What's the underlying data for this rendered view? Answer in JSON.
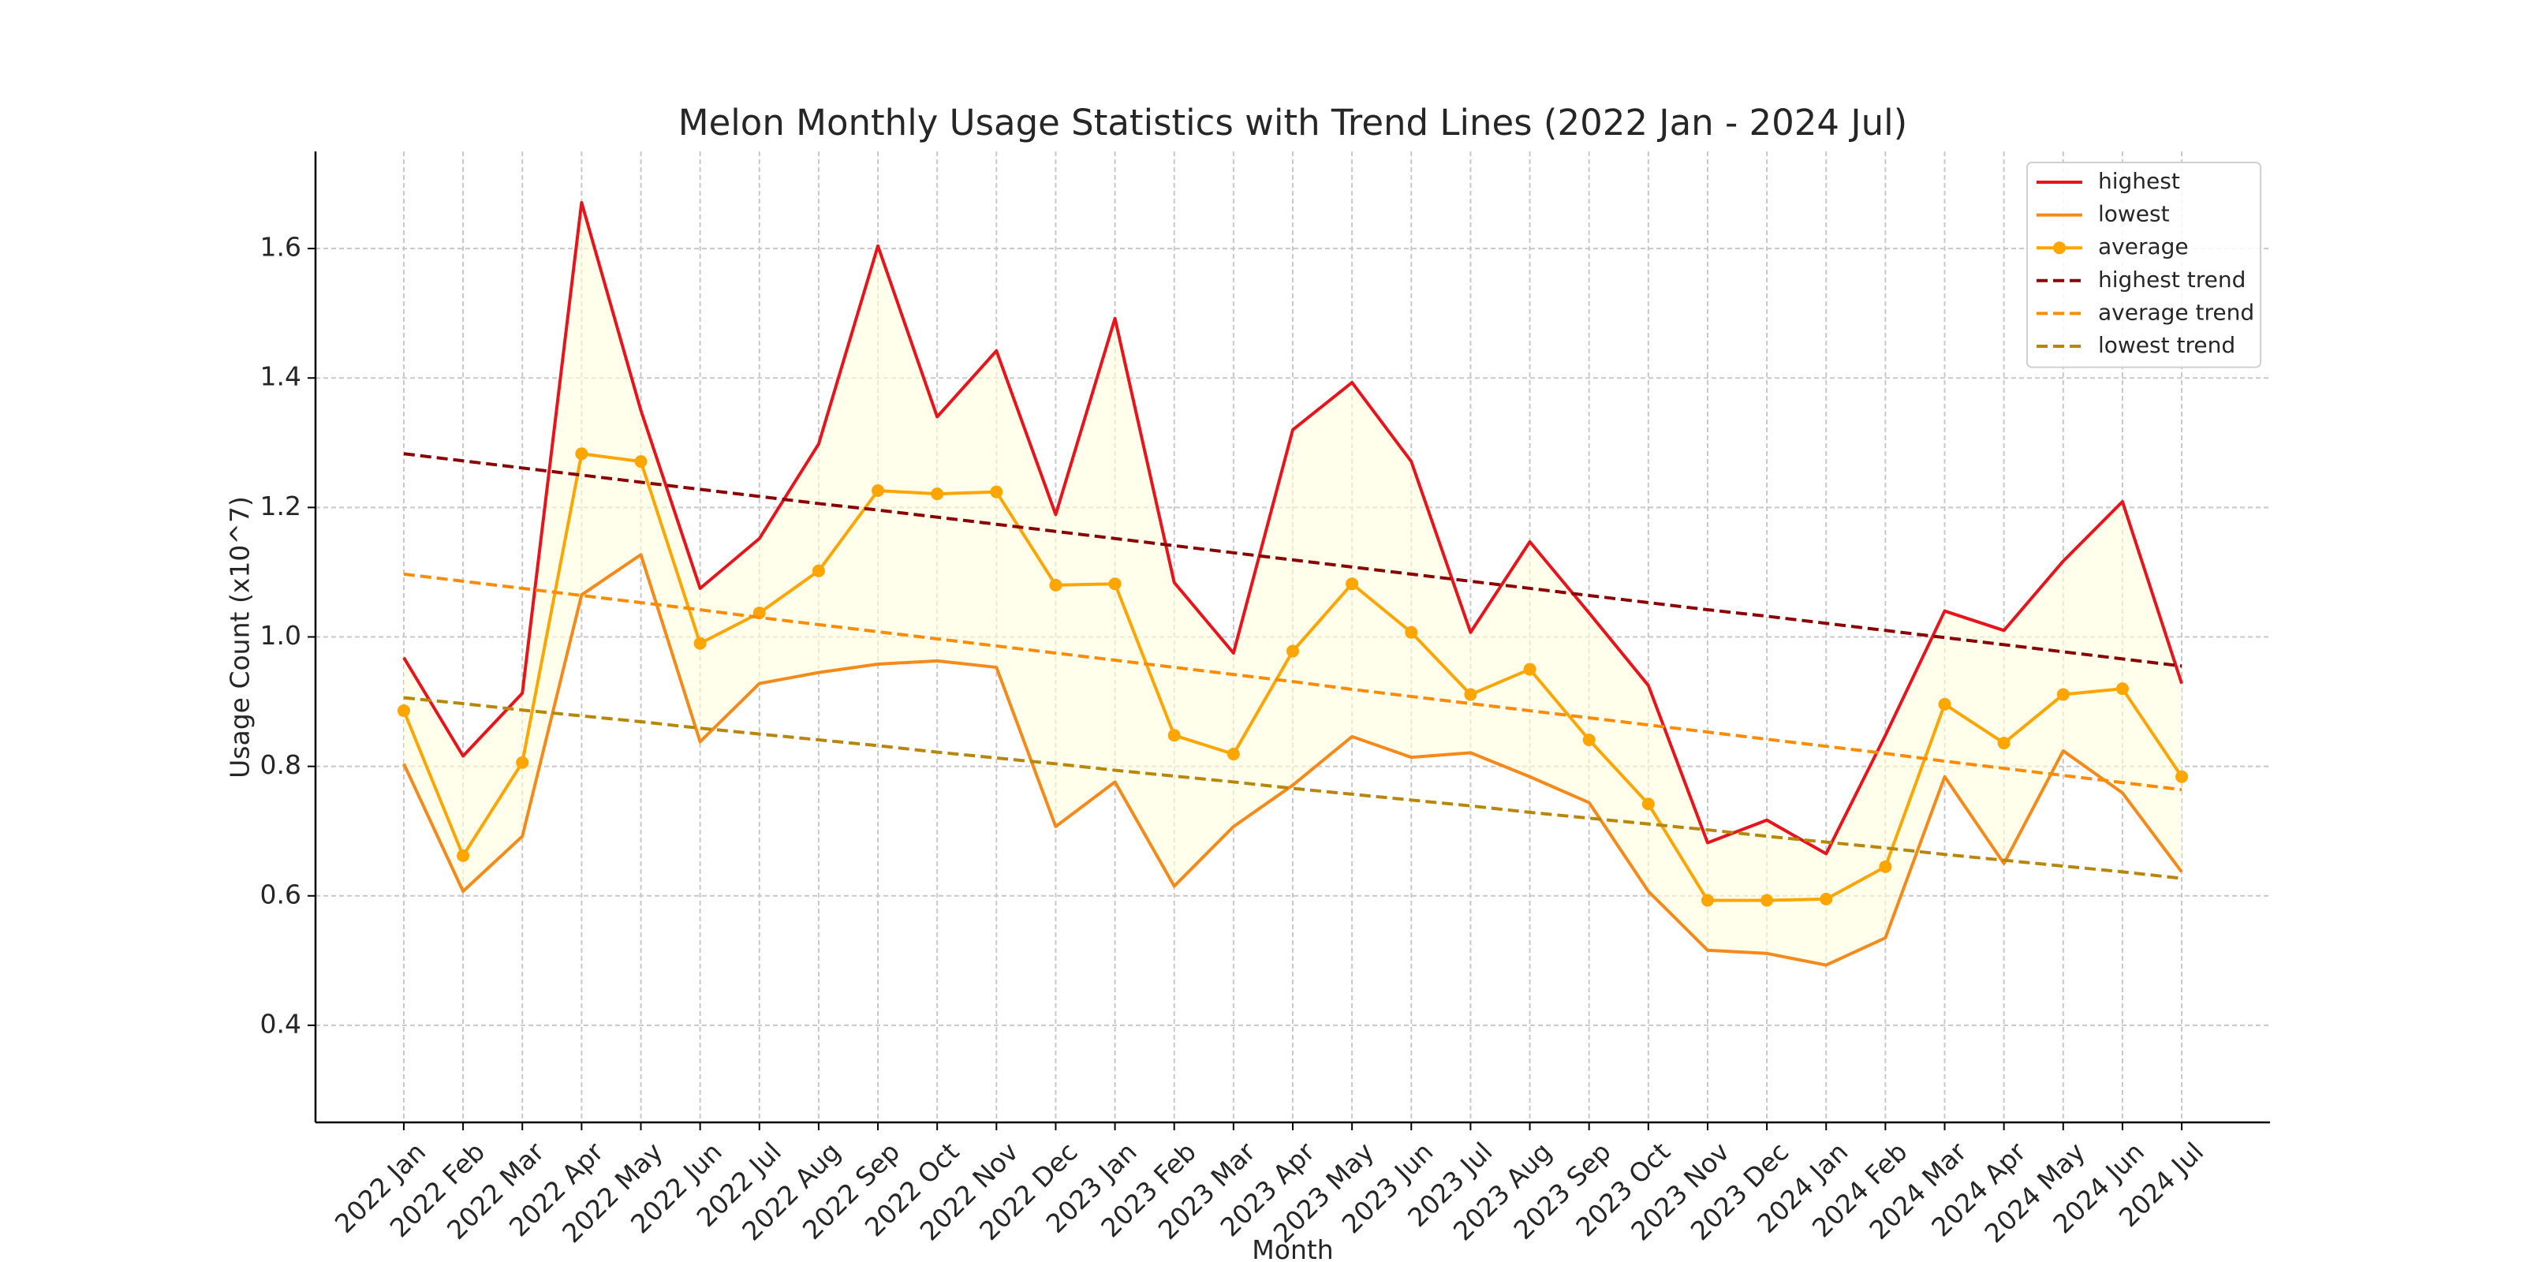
{
  "chart_data": {
    "type": "line",
    "title": "Melon Monthly Usage Statistics with Trend Lines (2022 Jan - 2024 Jul)",
    "x_label": "Month",
    "y_label": "Usage Count (x10^7)",
    "categories": [
      "2022 Jan",
      "2022 Feb",
      "2022 Mar",
      "2022 Apr",
      "2022 May",
      "2022 Jun",
      "2022 Jul",
      "2022 Aug",
      "2022 Sep",
      "2022 Oct",
      "2022 Nov",
      "2022 Dec",
      "2023 Jan",
      "2023 Feb",
      "2023 Mar",
      "2023 Apr",
      "2023 May",
      "2023 Jun",
      "2023 Jul",
      "2023 Aug",
      "2023 Sep",
      "2023 Oct",
      "2023 Nov",
      "2023 Dec",
      "2024 Jan",
      "2024 Feb",
      "2024 Mar",
      "2024 Apr",
      "2024 May",
      "2024 Jun",
      "2024 Jul"
    ],
    "series": [
      {
        "name": "highest",
        "color": "#e8141c",
        "style": "solid",
        "values": [
          0.968,
          0.816,
          0.913,
          1.671,
          1.35,
          1.075,
          1.152,
          1.298,
          1.604,
          1.34,
          1.442,
          1.189,
          1.492,
          1.084,
          0.975,
          1.32,
          1.393,
          1.271,
          1.007,
          1.147,
          1.037,
          0.925,
          0.682,
          0.717,
          0.665,
          0.848,
          1.04,
          1.01,
          1.117,
          1.209,
          0.928
        ]
      },
      {
        "name": "lowest",
        "color": "#f5891a",
        "style": "solid",
        "values": [
          0.804,
          0.607,
          0.692,
          1.065,
          1.127,
          0.838,
          0.928,
          0.945,
          0.958,
          0.963,
          0.953,
          0.707,
          0.776,
          0.615,
          0.707,
          0.771,
          0.846,
          0.814,
          0.821,
          0.784,
          0.744,
          0.607,
          0.516,
          0.511,
          0.493,
          0.535,
          0.784,
          0.65,
          0.824,
          0.759,
          0.637
        ]
      },
      {
        "name": "average",
        "color": "#ffa500",
        "style": "solid",
        "marker": true,
        "values": [
          0.886,
          0.662,
          0.806,
          1.283,
          1.271,
          0.99,
          1.037,
          1.102,
          1.226,
          1.221,
          1.224,
          1.08,
          1.082,
          0.848,
          0.819,
          0.978,
          1.082,
          1.007,
          0.911,
          0.95,
          0.841,
          0.742,
          0.593,
          0.593,
          0.595,
          0.645,
          0.896,
          0.836,
          0.911,
          0.92,
          0.784
        ]
      },
      {
        "name": "highest trend",
        "color": "#8b0000",
        "style": "dashed",
        "values": [
          1.283,
          1.272,
          1.261,
          1.25,
          1.239,
          1.228,
          1.217,
          1.206,
          1.196,
          1.185,
          1.174,
          1.163,
          1.152,
          1.141,
          1.13,
          1.119,
          1.108,
          1.097,
          1.086,
          1.075,
          1.064,
          1.053,
          1.042,
          1.032,
          1.021,
          1.01,
          0.999,
          0.988,
          0.977,
          0.966,
          0.955
        ]
      },
      {
        "name": "average trend",
        "color": "#ff8c00",
        "style": "dashed",
        "values": [
          1.097,
          1.086,
          1.075,
          1.064,
          1.053,
          1.042,
          1.03,
          1.019,
          1.008,
          0.997,
          0.986,
          0.975,
          0.964,
          0.953,
          0.942,
          0.931,
          0.919,
          0.908,
          0.897,
          0.886,
          0.875,
          0.864,
          0.853,
          0.842,
          0.831,
          0.82,
          0.808,
          0.797,
          0.786,
          0.775,
          0.764
        ]
      },
      {
        "name": "lowest trend",
        "color": "#b8860b",
        "style": "dashed",
        "values": [
          0.906,
          0.897,
          0.887,
          0.878,
          0.869,
          0.859,
          0.85,
          0.841,
          0.832,
          0.822,
          0.813,
          0.804,
          0.794,
          0.785,
          0.776,
          0.766,
          0.757,
          0.748,
          0.739,
          0.729,
          0.72,
          0.711,
          0.702,
          0.692,
          0.683,
          0.674,
          0.664,
          0.655,
          0.646,
          0.637,
          0.627
        ]
      }
    ],
    "fill_between": {
      "series": [
        0,
        1
      ],
      "color": "#ffffe0"
    },
    "ylim": [
      0.25,
      1.75
    ],
    "yticks": [
      0.4,
      0.6,
      0.8,
      {
        "value": 1,
        "label": "1.0"
      },
      1.2,
      1.4,
      1.6
    ],
    "grid": true,
    "legend": "upper right"
  }
}
